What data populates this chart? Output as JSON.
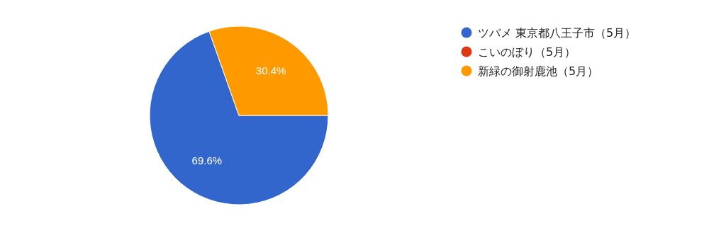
{
  "chart_data": {
    "type": "pie",
    "categories": [
      "ツバメ 東京都八王子市（5月）",
      "こいのぼり（5月）",
      "新緑の御射鹿池（5月）"
    ],
    "values": [
      69.6,
      0,
      30.4
    ],
    "colors": [
      "#3366cc",
      "#dc3912",
      "#ff9900"
    ],
    "value_labels": [
      "69.6%",
      null,
      "30.4%"
    ],
    "legend": "right"
  }
}
